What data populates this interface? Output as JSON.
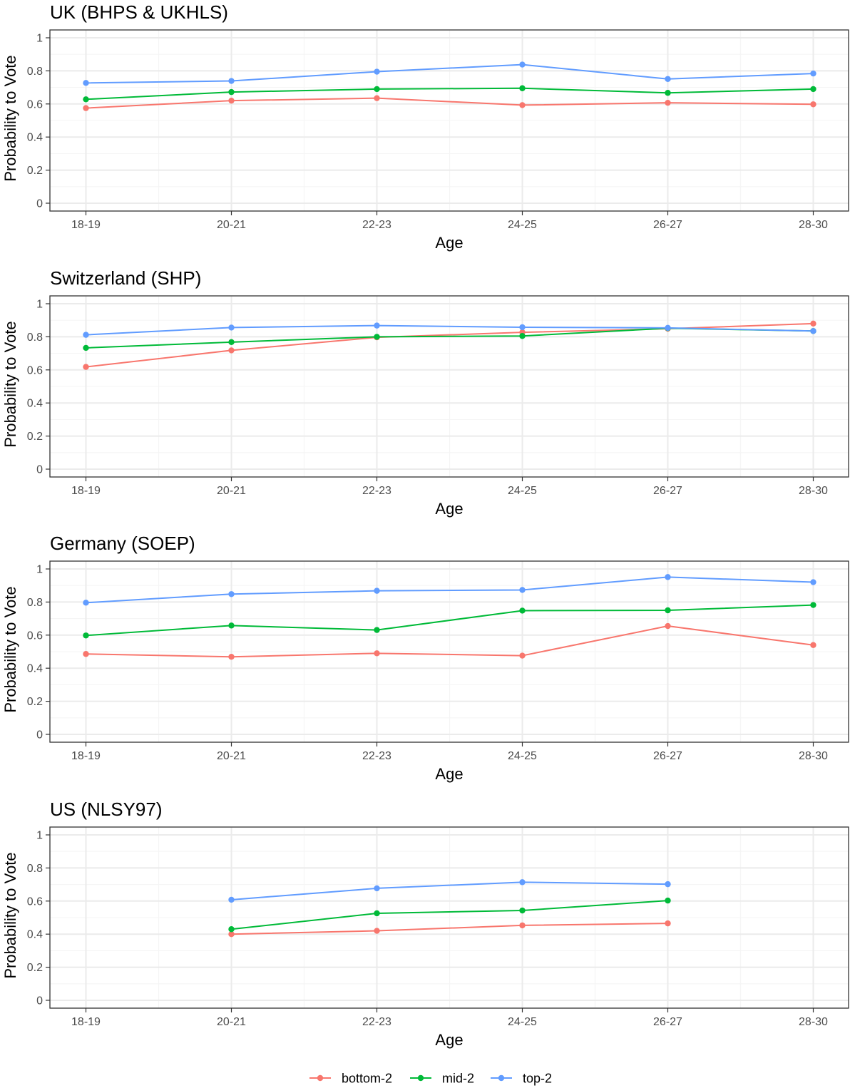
{
  "colors": {
    "bottom-2": "#F8766D",
    "mid-2": "#00BA38",
    "top-2": "#619CFF",
    "grid_major": "#ebebeb",
    "grid_minor": "#f5f5f5",
    "panel_border": "#333333"
  },
  "legend": {
    "position": "bottom",
    "items": [
      "bottom-2",
      "mid-2",
      "top-2"
    ]
  },
  "chart_data": [
    {
      "type": "line",
      "title": "UK (BHPS & UKHLS)",
      "xlabel": "Age",
      "ylabel": "Probability to Vote",
      "categories": [
        "18-19",
        "20-21",
        "22-23",
        "24-25",
        "26-27",
        "28-30"
      ],
      "ylim": [
        0,
        1
      ],
      "yticks": [
        "0",
        "0.2",
        "0.4",
        "0.6",
        "0.8",
        "1"
      ],
      "grid": true,
      "series": [
        {
          "name": "bottom-2",
          "values": [
            0.575,
            0.62,
            0.635,
            0.593,
            0.607,
            0.598
          ]
        },
        {
          "name": "mid-2",
          "values": [
            0.628,
            0.672,
            0.69,
            0.695,
            0.667,
            0.69
          ]
        },
        {
          "name": "top-2",
          "values": [
            0.727,
            0.739,
            0.795,
            0.838,
            0.751,
            0.784
          ]
        }
      ]
    },
    {
      "type": "line",
      "title": "Switzerland (SHP)",
      "xlabel": "Age",
      "ylabel": "Probability to Vote",
      "categories": [
        "18-19",
        "20-21",
        "22-23",
        "24-25",
        "26-27",
        "28-30"
      ],
      "ylim": [
        0,
        1
      ],
      "yticks": [
        "0",
        "0.2",
        "0.4",
        "0.6",
        "0.8",
        "1"
      ],
      "grid": true,
      "series": [
        {
          "name": "bottom-2",
          "values": [
            0.618,
            0.718,
            0.797,
            0.827,
            0.849,
            0.88
          ]
        },
        {
          "name": "mid-2",
          "values": [
            0.733,
            0.768,
            0.8,
            0.805,
            0.852,
            0.835
          ]
        },
        {
          "name": "top-2",
          "values": [
            0.812,
            0.856,
            0.868,
            0.858,
            0.854,
            0.835
          ]
        }
      ]
    },
    {
      "type": "line",
      "title": "Germany (SOEP)",
      "xlabel": "Age",
      "ylabel": "Probability to Vote",
      "categories": [
        "18-19",
        "20-21",
        "22-23",
        "24-25",
        "26-27",
        "28-30"
      ],
      "ylim": [
        0,
        1
      ],
      "yticks": [
        "0",
        "0.2",
        "0.4",
        "0.6",
        "0.8",
        "1"
      ],
      "grid": true,
      "series": [
        {
          "name": "bottom-2",
          "values": [
            0.486,
            0.469,
            0.49,
            0.476,
            0.655,
            0.54
          ]
        },
        {
          "name": "mid-2",
          "values": [
            0.598,
            0.658,
            0.631,
            0.748,
            0.75,
            0.782
          ]
        },
        {
          "name": "top-2",
          "values": [
            0.796,
            0.848,
            0.868,
            0.873,
            0.951,
            0.92
          ]
        }
      ]
    },
    {
      "type": "line",
      "title": "US (NLSY97)",
      "xlabel": "Age",
      "ylabel": "Probability to Vote",
      "categories": [
        "18-19",
        "20-21",
        "22-23",
        "24-25",
        "26-27",
        "28-30"
      ],
      "ylim": [
        0,
        1
      ],
      "yticks": [
        "0",
        "0.2",
        "0.4",
        "0.6",
        "0.8",
        "1"
      ],
      "grid": true,
      "series": [
        {
          "name": "bottom-2",
          "values": [
            null,
            0.4,
            0.42,
            0.453,
            0.465,
            null
          ]
        },
        {
          "name": "mid-2",
          "values": [
            null,
            0.43,
            0.526,
            0.543,
            0.603,
            null
          ]
        },
        {
          "name": "top-2",
          "values": [
            null,
            0.608,
            0.677,
            0.714,
            0.702,
            null
          ]
        }
      ]
    }
  ]
}
